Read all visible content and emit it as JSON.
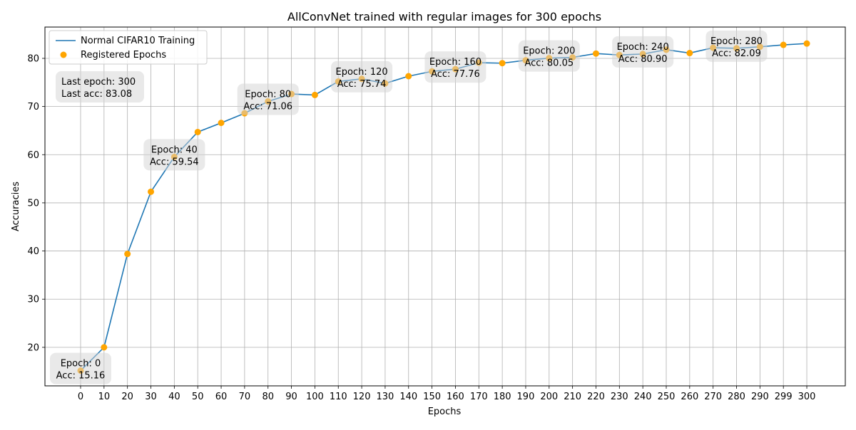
{
  "chart_data": {
    "type": "line",
    "title": "AllConvNet trained with regular images for 300 epochs",
    "xlabel": "Epochs",
    "ylabel": "Accuracies",
    "ylim": [
      12,
      86.5
    ],
    "yticks": [
      20,
      30,
      40,
      50,
      60,
      70,
      80
    ],
    "categories": [
      "0",
      "10",
      "20",
      "30",
      "40",
      "50",
      "60",
      "70",
      "80",
      "90",
      "100",
      "110",
      "120",
      "130",
      "140",
      "150",
      "160",
      "170",
      "180",
      "190",
      "200",
      "210",
      "220",
      "230",
      "240",
      "250",
      "260",
      "270",
      "280",
      "290",
      "299",
      "300"
    ],
    "series": [
      {
        "name": "Normal CIFAR10 Training",
        "kind": "line",
        "color": "#1f77b4",
        "values": [
          15.16,
          20.0,
          39.4,
          52.3,
          59.54,
          64.7,
          66.6,
          68.6,
          71.06,
          72.6,
          72.4,
          75.2,
          75.74,
          74.8,
          76.3,
          77.3,
          77.76,
          79.1,
          79.0,
          79.6,
          80.05,
          80.2,
          81.0,
          80.7,
          80.9,
          81.8,
          81.1,
          82.2,
          82.09,
          82.4,
          82.8,
          83.08
        ]
      },
      {
        "name": "Registered Epochs",
        "kind": "scatter",
        "color": "#ffa500",
        "values": [
          15.16,
          20.0,
          39.4,
          52.3,
          59.54,
          64.7,
          66.6,
          68.6,
          71.06,
          72.6,
          72.4,
          75.2,
          75.74,
          74.8,
          76.3,
          77.3,
          77.76,
          79.1,
          79.0,
          79.6,
          80.05,
          80.2,
          81.0,
          80.7,
          80.9,
          81.8,
          81.1,
          82.2,
          82.09,
          82.4,
          82.8,
          83.08
        ]
      }
    ],
    "grid": true,
    "legend_position": "top-left",
    "annotations": [
      {
        "index": 0,
        "line1": "Epoch: 0",
        "line2": "Acc: 15.16"
      },
      {
        "index": 4,
        "line1": "Epoch: 40",
        "line2": "Acc: 59.54"
      },
      {
        "index": 8,
        "line1": "Epoch: 80",
        "line2": "Acc: 71.06"
      },
      {
        "index": 12,
        "line1": "Epoch: 120",
        "line2": "Acc: 75.74"
      },
      {
        "index": 16,
        "line1": "Epoch: 160",
        "line2": "Acc: 77.76"
      },
      {
        "index": 20,
        "line1": "Epoch: 200",
        "line2": "Acc: 80.05"
      },
      {
        "index": 24,
        "line1": "Epoch: 240",
        "line2": "Acc: 80.90"
      },
      {
        "index": 28,
        "line1": "Epoch: 280",
        "line2": "Acc: 82.09"
      }
    ],
    "summary": {
      "line1": "Last epoch: 300",
      "line2": "Last acc: 83.08"
    }
  }
}
